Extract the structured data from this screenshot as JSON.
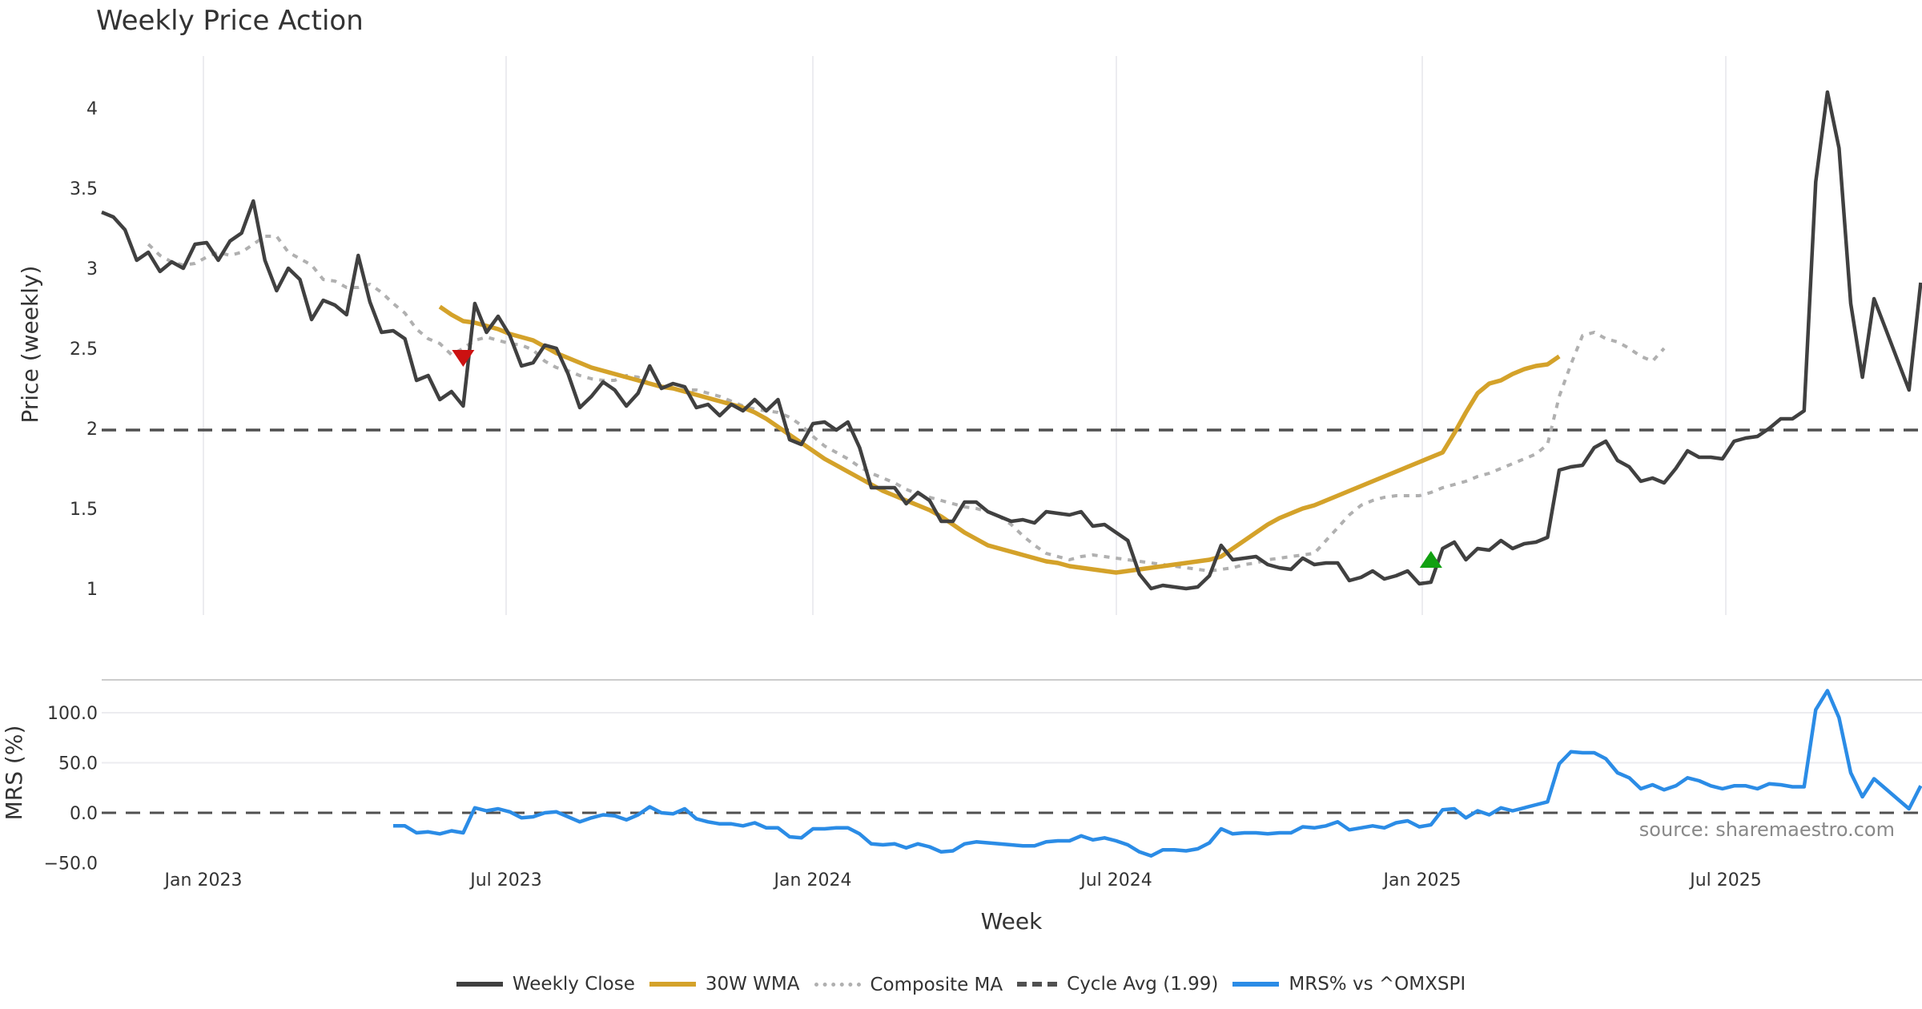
{
  "title": "Weekly Price Action",
  "legend": [
    {
      "label": "Weekly Close",
      "color": "#404040",
      "style": "solid"
    },
    {
      "label": "30W WMA",
      "color": "#d4a22a",
      "style": "solid"
    },
    {
      "label": "Composite MA",
      "color": "#b0b0b0",
      "style": "dotted"
    },
    {
      "label": "Cycle Avg (1.99)",
      "color": "#505050",
      "style": "dashed"
    },
    {
      "label": "MRS% vs ^OMXSPI",
      "color": "#2b8ce6",
      "style": "solid"
    }
  ],
  "source": "source: sharemaestro.com",
  "chart_data": [
    {
      "type": "line",
      "title": "Weekly Price Action",
      "xlabel": "",
      "ylabel": "Price (weekly)",
      "x_ticks": [
        "Jan 2023",
        "Jul 2023",
        "Jan 2024",
        "Jul 2024",
        "Jan 2025",
        "Jul 2025"
      ],
      "y_ticks": [
        "1",
        "1.5",
        "2",
        "2.5",
        "3",
        "3.5",
        "4"
      ],
      "ylim": [
        0.84,
        4.25
      ],
      "x_start_week_offset": -8.7,
      "weeks_per_halfyear": 26,
      "grid": "vertical",
      "series": [
        {
          "name": "Weekly Close",
          "start": 0,
          "values": [
            3.35,
            3.32,
            3.24,
            3.05,
            3.1,
            2.98,
            3.04,
            3.0,
            3.15,
            3.16,
            3.05,
            3.17,
            3.22,
            3.42,
            3.05,
            2.86,
            3.0,
            2.93,
            2.68,
            2.8,
            2.77,
            2.71,
            3.08,
            2.79,
            2.6,
            2.61,
            2.56,
            2.3,
            2.33,
            2.18,
            2.23,
            2.14,
            2.78,
            2.6,
            2.7,
            2.58,
            2.39,
            2.41,
            2.52,
            2.5,
            2.34,
            2.13,
            2.2,
            2.29,
            2.24,
            2.14,
            2.22,
            2.39,
            2.25,
            2.28,
            2.26,
            2.13,
            2.15,
            2.08,
            2.15,
            2.11,
            2.18,
            2.11,
            2.18,
            1.93,
            1.9,
            2.03,
            2.04,
            1.99,
            2.04,
            1.88,
            1.63,
            1.63,
            1.63,
            1.53,
            1.6,
            1.55,
            1.42,
            1.42,
            1.54,
            1.54,
            1.48,
            1.45,
            1.42,
            1.43,
            1.41,
            1.48,
            1.47,
            1.46,
            1.48,
            1.39,
            1.4,
            1.35,
            1.3,
            1.09,
            1.0,
            1.02,
            1.01,
            1.0,
            1.01,
            1.08,
            1.27,
            1.18,
            1.19,
            1.2,
            1.15,
            1.13,
            1.12,
            1.19,
            1.15,
            1.16,
            1.16,
            1.05,
            1.07,
            1.11,
            1.06,
            1.08,
            1.11,
            1.03,
            1.04,
            1.25,
            1.29,
            1.18,
            1.25,
            1.24,
            1.3,
            1.25,
            1.28,
            1.29,
            1.32,
            1.74,
            1.76,
            1.77,
            1.88,
            1.92,
            1.8,
            1.76,
            1.67,
            1.69,
            1.66,
            1.75,
            1.86,
            1.82,
            1.82,
            1.81,
            1.92,
            1.94,
            1.95,
            2.0,
            2.06,
            2.06,
            2.11,
            3.54,
            4.1,
            3.75,
            2.78,
            2.32,
            2.81,
            2.62,
            2.43,
            2.24,
            2.91
          ]
        },
        {
          "name": "30W WMA",
          "start": 29,
          "values": [
            2.76,
            2.71,
            2.67,
            2.66,
            2.64,
            2.62,
            2.59,
            2.57,
            2.55,
            2.51,
            2.47,
            2.44,
            2.41,
            2.38,
            2.36,
            2.34,
            2.32,
            2.3,
            2.28,
            2.26,
            2.25,
            2.23,
            2.21,
            2.19,
            2.17,
            2.15,
            2.13,
            2.1,
            2.06,
            2.01,
            1.96,
            1.91,
            1.86,
            1.81,
            1.77,
            1.73,
            1.69,
            1.65,
            1.61,
            1.58,
            1.55,
            1.52,
            1.49,
            1.45,
            1.4,
            1.35,
            1.31,
            1.27,
            1.25,
            1.23,
            1.21,
            1.19,
            1.17,
            1.16,
            1.14,
            1.13,
            1.12,
            1.11,
            1.1,
            1.11,
            1.12,
            1.13,
            1.14,
            1.15,
            1.16,
            1.17,
            1.18,
            1.2,
            1.25,
            1.3,
            1.35,
            1.4,
            1.44,
            1.47,
            1.5,
            1.52,
            1.55,
            1.58,
            1.61,
            1.64,
            1.67,
            1.7,
            1.73,
            1.76,
            1.79,
            1.82,
            1.85,
            1.97,
            2.1,
            2.22,
            2.28,
            2.3,
            2.34,
            2.37,
            2.39,
            2.4,
            2.45
          ]
        },
        {
          "name": "Composite MA",
          "start": 4,
          "values": [
            3.15,
            3.08,
            3.04,
            3.02,
            3.03,
            3.07,
            3.1,
            3.08,
            3.1,
            3.15,
            3.2,
            3.2,
            3.1,
            3.06,
            3.02,
            2.93,
            2.92,
            2.88,
            2.88,
            2.9,
            2.85,
            2.78,
            2.72,
            2.62,
            2.56,
            2.53,
            2.46,
            2.5,
            2.55,
            2.57,
            2.55,
            2.53,
            2.52,
            2.49,
            2.42,
            2.38,
            2.36,
            2.33,
            2.31,
            2.3,
            2.3,
            2.33,
            2.32,
            2.28,
            2.26,
            2.25,
            2.24,
            2.24,
            2.22,
            2.2,
            2.17,
            2.14,
            2.12,
            2.11,
            2.1,
            2.07,
            2.02,
            1.95,
            1.89,
            1.85,
            1.81,
            1.76,
            1.72,
            1.69,
            1.66,
            1.62,
            1.59,
            1.57,
            1.55,
            1.53,
            1.51,
            1.5,
            1.48,
            1.45,
            1.4,
            1.33,
            1.27,
            1.22,
            1.2,
            1.18,
            1.2,
            1.21,
            1.2,
            1.19,
            1.18,
            1.17,
            1.16,
            1.15,
            1.14,
            1.13,
            1.12,
            1.11,
            1.12,
            1.13,
            1.15,
            1.16,
            1.18,
            1.19,
            1.2,
            1.21,
            1.22,
            1.3,
            1.38,
            1.46,
            1.52,
            1.55,
            1.57,
            1.58,
            1.58,
            1.58,
            1.6,
            1.63,
            1.65,
            1.67,
            1.7,
            1.72,
            1.75,
            1.78,
            1.81,
            1.84,
            1.9,
            2.2,
            2.4,
            2.58,
            2.6,
            2.56,
            2.54,
            2.5,
            2.45,
            2.42,
            2.5
          ]
        },
        {
          "name": "Cycle Avg (1.99)",
          "constant": 1.99
        }
      ],
      "markers": [
        {
          "type": "sell-triangle-down",
          "week_index": 31,
          "value": 2.44,
          "color": "#cc1111"
        },
        {
          "type": "buy-triangle-up",
          "week_index": 114,
          "value": 1.18,
          "color": "#11a011"
        }
      ]
    },
    {
      "type": "line",
      "xlabel": "Week",
      "ylabel": "MRS (%)",
      "x_ticks": [
        "Jan 2023",
        "Jul 2023",
        "Jan 2024",
        "Jul 2024",
        "Jan 2025",
        "Jul 2025"
      ],
      "y_ticks": [
        "−50.0",
        "0.0",
        "50.0",
        "100.0"
      ],
      "ylim": [
        -50,
        132
      ],
      "zero_line": 0.0,
      "series": [
        {
          "name": "MRS% vs ^OMXSPI",
          "start": 25,
          "values": [
            -13,
            -13,
            -20,
            -19,
            -21,
            -18,
            -20,
            5,
            2,
            4,
            1,
            -5,
            -4,
            0,
            1,
            -4,
            -9,
            -5,
            -2,
            -3,
            -7,
            -2,
            6,
            0,
            -1,
            4,
            -6,
            -9,
            -11,
            -11,
            -13,
            -10,
            -15,
            -15,
            -24,
            -25,
            -16,
            -16,
            -15,
            -15,
            -21,
            -31,
            -32,
            -31,
            -35,
            -31,
            -34,
            -39,
            -38,
            -31,
            -29,
            -30,
            -31,
            -32,
            -33,
            -33,
            -29,
            -28,
            -28,
            -23,
            -27,
            -25,
            -28,
            -32,
            -39,
            -43,
            -37,
            -37,
            -38,
            -36,
            -30,
            -16,
            -21,
            -20,
            -20,
            -21,
            -20,
            -20,
            -14,
            -15,
            -13,
            -9,
            -17,
            -15,
            -13,
            -15,
            -10,
            -8,
            -14,
            -12,
            3,
            4,
            -5,
            2,
            -2,
            5,
            2,
            5,
            8,
            11,
            49,
            61,
            60,
            60,
            54,
            40,
            35,
            24,
            28,
            23,
            27,
            35,
            32,
            27,
            24,
            27,
            27,
            24,
            29,
            28,
            26,
            26,
            103,
            122,
            95,
            40,
            16,
            34,
            24,
            14,
            4,
            27
          ]
        }
      ]
    }
  ]
}
